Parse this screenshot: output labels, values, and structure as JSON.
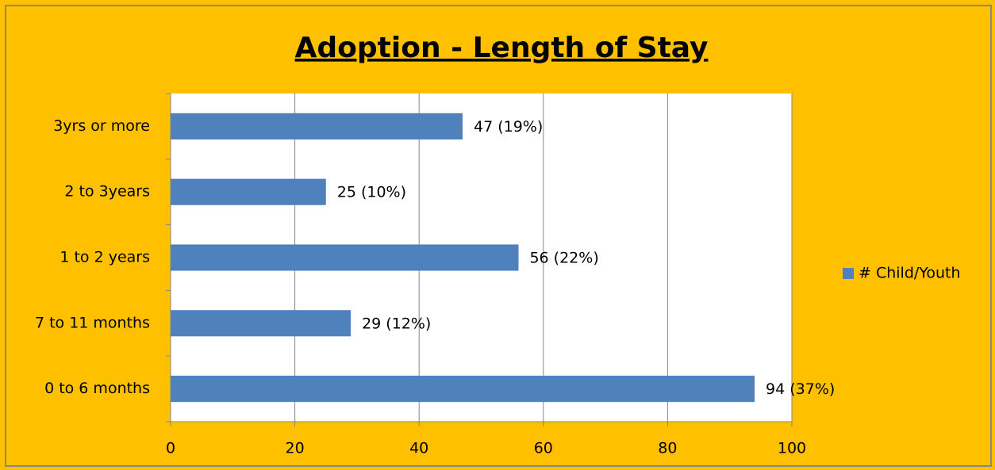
{
  "chart_data": {
    "type": "bar",
    "orientation": "horizontal",
    "title": "Adoption - Length of Stay",
    "categories": [
      "0 to 6 months",
      "7 to 11 months",
      "1 to 2 years",
      "2 to 3years",
      "3yrs or more"
    ],
    "series": [
      {
        "name": "# Child/Youth",
        "color": "#4f81bd",
        "values": [
          94,
          29,
          56,
          25,
          47
        ],
        "value_labels": [
          "94 (37%)",
          "29 (12%)",
          "56 (22%)",
          "25 (10%)",
          "47 (19%)"
        ]
      }
    ],
    "xlim": [
      0,
      100
    ],
    "xticks": [
      0,
      20,
      40,
      60,
      80,
      100
    ],
    "grid": true,
    "legend": "right"
  }
}
